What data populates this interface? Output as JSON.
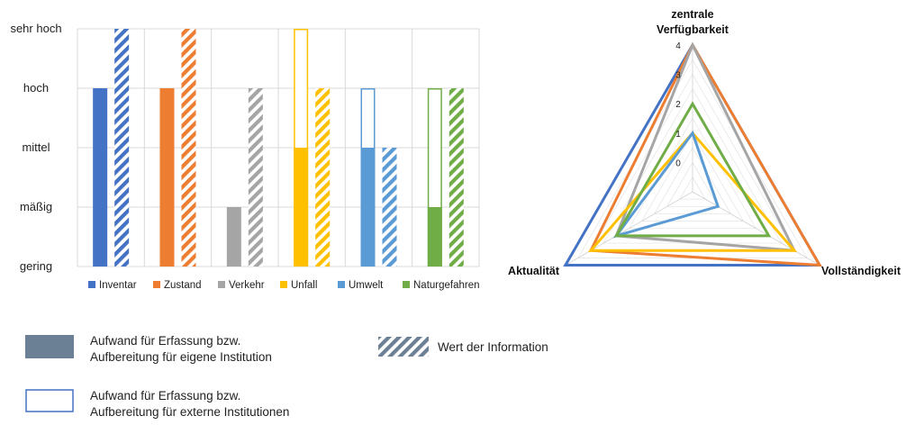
{
  "bar_chart": {
    "type": "bar",
    "levels": [
      "gering",
      "mäßig",
      "mittel",
      "hoch",
      "sehr hoch"
    ],
    "categories": [
      "Inventar",
      "Zustand",
      "Verkehr",
      "Unfall",
      "Umwelt",
      "Naturgefahren"
    ],
    "colors": [
      "#4472C4",
      "#ED7D31",
      "#A5A5A5",
      "#FFC000",
      "#5B9BD5",
      "#70AD47"
    ],
    "series": [
      {
        "name": "Aufwand für Erfassung bzw. Aufbereitung für eigene Institution",
        "style": "solid",
        "values": [
          3,
          3,
          1,
          2,
          2,
          1
        ]
      },
      {
        "name": "Aufwand für Erfassung bzw. Aufbereitung für externe Institutionen",
        "style": "outline",
        "values": [
          null,
          null,
          null,
          4,
          3,
          3
        ]
      },
      {
        "name": "Wert der Information",
        "style": "hatched",
        "values": [
          4,
          4,
          3,
          3,
          2,
          3
        ]
      }
    ],
    "ylim": [
      0,
      4
    ],
    "grid": true,
    "legend_position": "bottom"
  },
  "radar_chart": {
    "type": "radar",
    "axes": [
      "zentrale Verfügbarkeit",
      "Vollständigkeit",
      "Aktualität"
    ],
    "axis_label_top_lines": [
      "zentrale",
      "Verfügbarkeit"
    ],
    "ticks": [
      "0",
      "1",
      "2",
      "3",
      "4"
    ],
    "range": [
      -1,
      4
    ],
    "series": [
      {
        "category": "Inventar",
        "color": "#4472C4",
        "values": [
          4,
          4,
          4
        ]
      },
      {
        "category": "Zustand",
        "color": "#ED7D31",
        "values": [
          4,
          4,
          3
        ]
      },
      {
        "category": "Verkehr",
        "color": "#A5A5A5",
        "values": [
          4,
          3,
          2
        ]
      },
      {
        "category": "Unfall",
        "color": "#FFC000",
        "values": [
          1,
          3,
          3
        ]
      },
      {
        "category": "Umwelt",
        "color": "#5B9BD5",
        "values": [
          1,
          0,
          2
        ]
      },
      {
        "category": "Naturgefahren",
        "color": "#70AD47",
        "values": [
          2,
          2,
          2
        ]
      }
    ]
  },
  "key": {
    "solid_line1": "Aufwand für Erfassung bzw.",
    "solid_line2": "Aufbereitung für eigene Institution",
    "hatched_label": "Wert der Information",
    "outline_line1": "Aufwand für Erfassung bzw.",
    "outline_line2": "Aufbereitung für externe Institutionen",
    "solid_color": "#6B7F95",
    "hatch_color": "#6B7F95",
    "outline_color": "#4472C4"
  }
}
